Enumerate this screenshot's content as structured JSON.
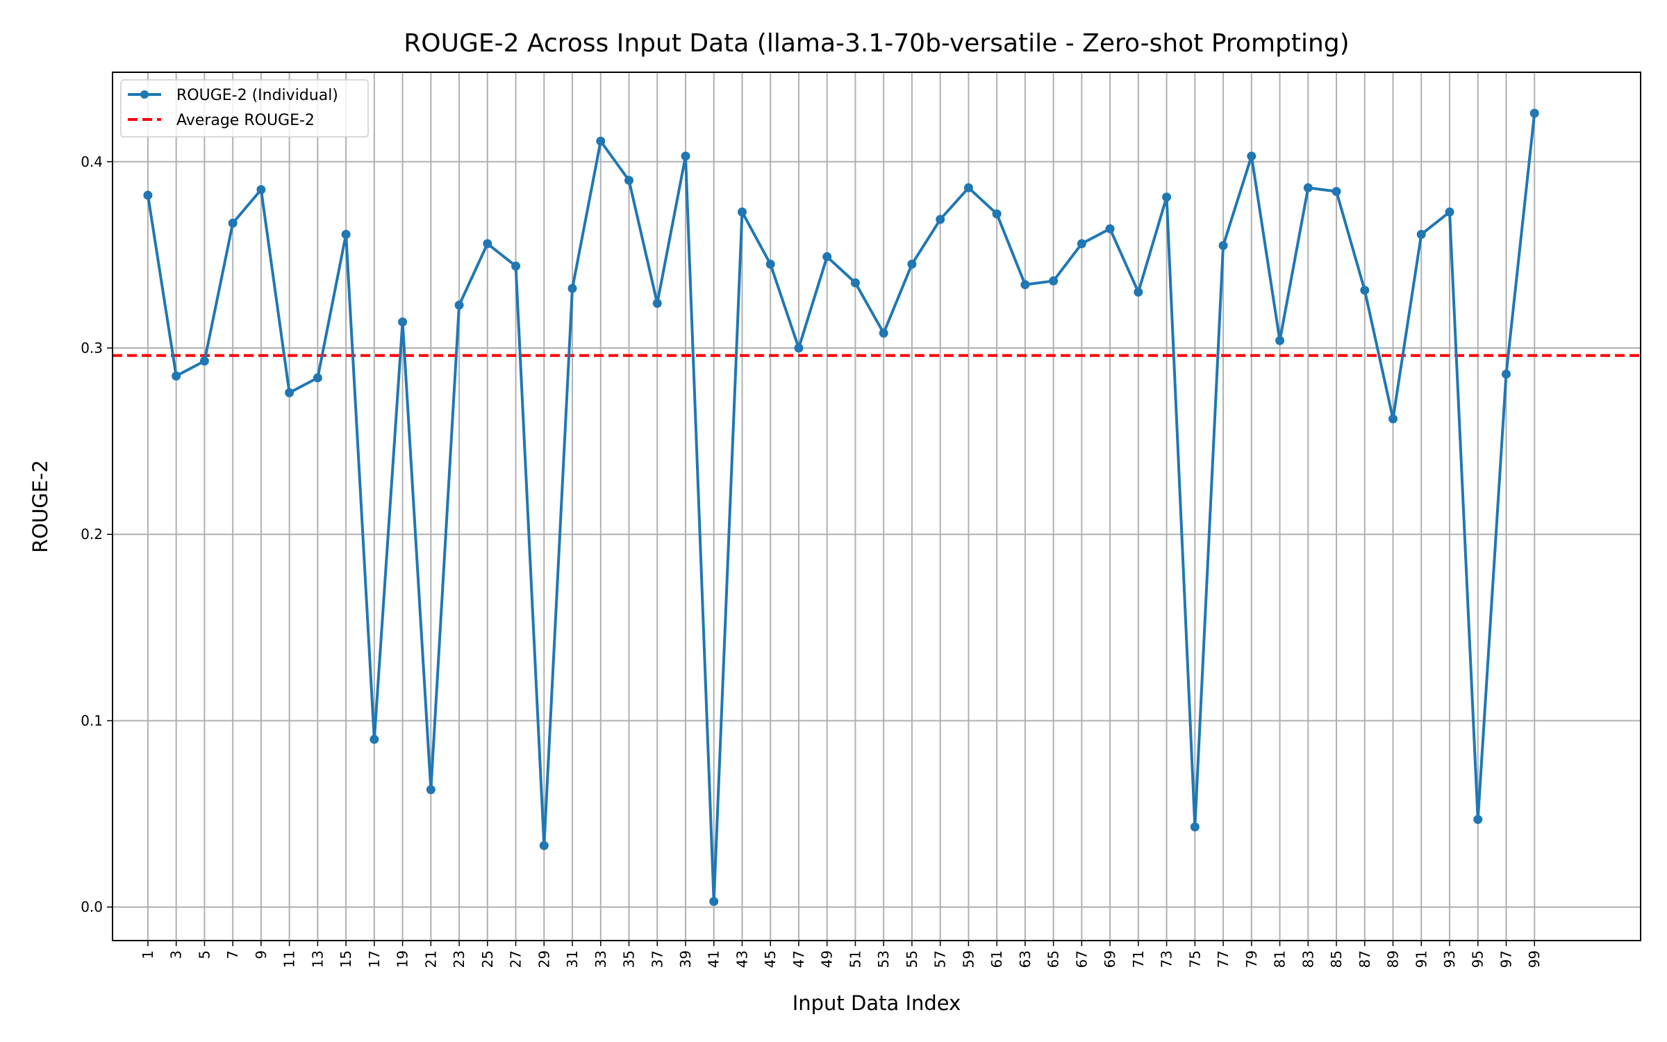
{
  "chart_data": {
    "type": "line",
    "title": "ROUGE-2 Across Input Data (llama-3.1-70b-versatile - Zero-shot Prompting)",
    "xlabel": "Input Data Index",
    "ylabel": "ROUGE-2",
    "xlim": [
      -1.5,
      106.5
    ],
    "ylim": [
      -0.018,
      0.448
    ],
    "grid": true,
    "legend_position": "top-left",
    "x_ticks": [
      1,
      3,
      5,
      7,
      9,
      11,
      13,
      15,
      17,
      19,
      21,
      23,
      25,
      27,
      29,
      31,
      33,
      35,
      37,
      39,
      41,
      43,
      45,
      47,
      49,
      51,
      53,
      55,
      57,
      59,
      61,
      63,
      65,
      67,
      69,
      71,
      73,
      75,
      77,
      79,
      81,
      83,
      85,
      87,
      89,
      91,
      93,
      95,
      97,
      99
    ],
    "y_ticks": [
      0.0,
      0.1,
      0.2,
      0.3,
      0.4
    ],
    "series": [
      {
        "name": "ROUGE-2 (Individual)",
        "color": "#1f77b4",
        "style": "solid-with-markers",
        "x": [
          1,
          3,
          5,
          7,
          9,
          11,
          13,
          15,
          17,
          19,
          21,
          23,
          25,
          27,
          29,
          31,
          33,
          35,
          37,
          39,
          41,
          43,
          45,
          47,
          49,
          51,
          53,
          55,
          57,
          59,
          61,
          63,
          65,
          67,
          69,
          71,
          73,
          75,
          77,
          79,
          81,
          83,
          85,
          87,
          89,
          91,
          93,
          95,
          97,
          99
        ],
        "y": [
          0.382,
          0.285,
          0.293,
          0.367,
          0.385,
          0.276,
          0.284,
          0.361,
          0.09,
          0.314,
          0.063,
          0.323,
          0.356,
          0.344,
          0.033,
          0.332,
          0.411,
          0.39,
          0.324,
          0.403,
          0.003,
          0.373,
          0.345,
          0.3,
          0.349,
          0.335,
          0.308,
          0.345,
          0.369,
          0.386,
          0.372,
          0.334,
          0.336,
          0.356,
          0.364,
          0.33,
          0.381,
          0.043,
          0.355,
          0.403,
          0.304,
          0.386,
          0.384,
          0.331,
          0.262,
          0.361,
          0.373,
          0.047,
          0.286,
          0.426
        ]
      },
      {
        "name": "Average ROUGE-2",
        "color": "#ff0000",
        "style": "dashed",
        "y_constant": 0.296
      }
    ]
  }
}
